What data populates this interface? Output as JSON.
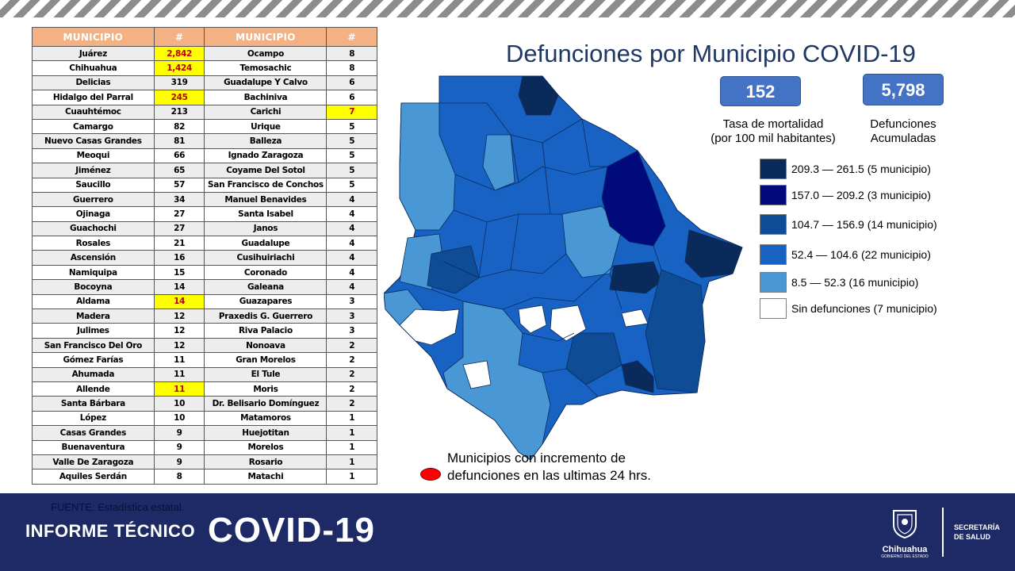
{
  "table": {
    "headers": [
      "MUNICIPIO",
      "#",
      "MUNICIPIO",
      "#"
    ],
    "rows": [
      {
        "m1": "Juárez",
        "v1": "2,842",
        "h1": true,
        "m2": "Ocampo",
        "v2": "8",
        "h2": false
      },
      {
        "m1": "Chihuahua",
        "v1": "1,424",
        "h1": true,
        "m2": "Temosachic",
        "v2": "8",
        "h2": false
      },
      {
        "m1": "Delicias",
        "v1": "319",
        "h1": false,
        "m2": "Guadalupe Y Calvo",
        "v2": "6",
        "h2": false
      },
      {
        "m1": "Hidalgo del Parral",
        "v1": "245",
        "h1": true,
        "m2": "Bachiniva",
        "v2": "6",
        "h2": false
      },
      {
        "m1": "Cuauhtémoc",
        "v1": "213",
        "h1": false,
        "m2": "Carichi",
        "v2": "7",
        "h2": true
      },
      {
        "m1": "Camargo",
        "v1": "82",
        "h1": false,
        "m2": "Urique",
        "v2": "5",
        "h2": false
      },
      {
        "m1": "Nuevo Casas Grandes",
        "v1": "81",
        "h1": false,
        "m2": "Balleza",
        "v2": "5",
        "h2": false
      },
      {
        "m1": "Meoqui",
        "v1": "66",
        "h1": false,
        "m2": "Ignado Zaragoza",
        "v2": "5",
        "h2": false
      },
      {
        "m1": "Jiménez",
        "v1": "65",
        "h1": false,
        "m2": "Coyame Del Sotol",
        "v2": "5",
        "h2": false
      },
      {
        "m1": "Saucillo",
        "v1": "57",
        "h1": false,
        "m2": "San Francisco de Conchos",
        "v2": "5",
        "h2": false
      },
      {
        "m1": "Guerrero",
        "v1": "34",
        "h1": false,
        "m2": "Manuel Benavides",
        "v2": "4",
        "h2": false
      },
      {
        "m1": "Ojinaga",
        "v1": "27",
        "h1": false,
        "m2": "Santa Isabel",
        "v2": "4",
        "h2": false
      },
      {
        "m1": "Guachochi",
        "v1": "27",
        "h1": false,
        "m2": "Janos",
        "v2": "4",
        "h2": false
      },
      {
        "m1": "Rosales",
        "v1": "21",
        "h1": false,
        "m2": "Guadalupe",
        "v2": "4",
        "h2": false
      },
      {
        "m1": "Ascensión",
        "v1": "16",
        "h1": false,
        "m2": "Cusihuiriachi",
        "v2": "4",
        "h2": false
      },
      {
        "m1": "Namiquipa",
        "v1": "15",
        "h1": false,
        "m2": "Coronado",
        "v2": "4",
        "h2": false
      },
      {
        "m1": "Bocoyna",
        "v1": "14",
        "h1": false,
        "m2": "Galeana",
        "v2": "4",
        "h2": false
      },
      {
        "m1": "Aldama",
        "v1": "14",
        "h1": true,
        "m2": "Guazapares",
        "v2": "3",
        "h2": false
      },
      {
        "m1": "Madera",
        "v1": "12",
        "h1": false,
        "m2": "Praxedis G. Guerrero",
        "v2": "3",
        "h2": false
      },
      {
        "m1": "Julimes",
        "v1": "12",
        "h1": false,
        "m2": "Riva Palacio",
        "v2": "3",
        "h2": false
      },
      {
        "m1": "San Francisco Del Oro",
        "v1": "12",
        "h1": false,
        "m2": "Nonoava",
        "v2": "2",
        "h2": false
      },
      {
        "m1": "Gómez Farías",
        "v1": "11",
        "h1": false,
        "m2": "Gran Morelos",
        "v2": "2",
        "h2": false
      },
      {
        "m1": "Ahumada",
        "v1": "11",
        "h1": false,
        "m2": "El Tule",
        "v2": "2",
        "h2": false
      },
      {
        "m1": "Allende",
        "v1": "11",
        "h1": true,
        "m2": "Moris",
        "v2": "2",
        "h2": false
      },
      {
        "m1": "Santa Bárbara",
        "v1": "10",
        "h1": false,
        "m2": "Dr. Belisario Domínguez",
        "v2": "2",
        "h2": false
      },
      {
        "m1": "López",
        "v1": "10",
        "h1": false,
        "m2": "Matamoros",
        "v2": "1",
        "h2": false
      },
      {
        "m1": "Casas Grandes",
        "v1": "9",
        "h1": false,
        "m2": "Huejotitan",
        "v2": "1",
        "h2": false
      },
      {
        "m1": "Buenaventura",
        "v1": "9",
        "h1": false,
        "m2": "Morelos",
        "v2": "1",
        "h2": false
      },
      {
        "m1": "Valle De Zaragoza",
        "v1": "9",
        "h1": false,
        "m2": "Rosario",
        "v2": "1",
        "h2": false
      },
      {
        "m1": "Aquiles Serdán",
        "v1": "8",
        "h1": false,
        "m2": "Matachi",
        "v2": "1",
        "h2": false
      }
    ]
  },
  "title": "Defunciones por Municipio COVID-19",
  "stats": {
    "mortality_value": "152",
    "mortality_label_1": "Tasa de mortalidad",
    "mortality_label_2": "(por 100 mil habitantes)",
    "deaths_value": "5,798",
    "deaths_label_1": "Defunciones",
    "deaths_label_2": "Acumuladas"
  },
  "legend": [
    {
      "label": "209.3 — 261.5 (5 municipio)",
      "color": "#0b2a5c"
    },
    {
      "label": "157.0 — 209.2 (3 municipio)",
      "color": "#000a7a"
    },
    {
      "label": "104.7 — 156.9 (14 municipio)",
      "color": "#0f4c96"
    },
    {
      "label": "52.4 — 104.6 (22 municipio)",
      "color": "#1762c2"
    },
    {
      "label": "8.5 — 52.3 (16 municipio)",
      "color": "#4a97d6"
    },
    {
      "label": "Sin defunciones (7 municipio)",
      "color": "#ffffff"
    }
  ],
  "note": {
    "line1": "Municipios con incremento de",
    "line2": "defunciones en las ultimas 24 hrs.",
    "dot_color": "#ff0000"
  },
  "footer": {
    "source": "FUENTE: Estadística estatal.",
    "report_label": "INFORME TÉCNICO",
    "report_title": "COVID-19",
    "logo_name": "Chihuahua",
    "logo_sub": "GOBIERNO DEL ESTADO",
    "dept_line1": "SECRETARÍA",
    "dept_line2": "DE SALUD",
    "logo_icon": "state-shield-icon"
  },
  "colors": {
    "header_bg": "#f4b183",
    "highlight": "#ffff00",
    "highlight_text": "#c00000",
    "footer_bg": "#1e2a66",
    "stat_box": "#4472c4",
    "title": "#1f3864"
  }
}
